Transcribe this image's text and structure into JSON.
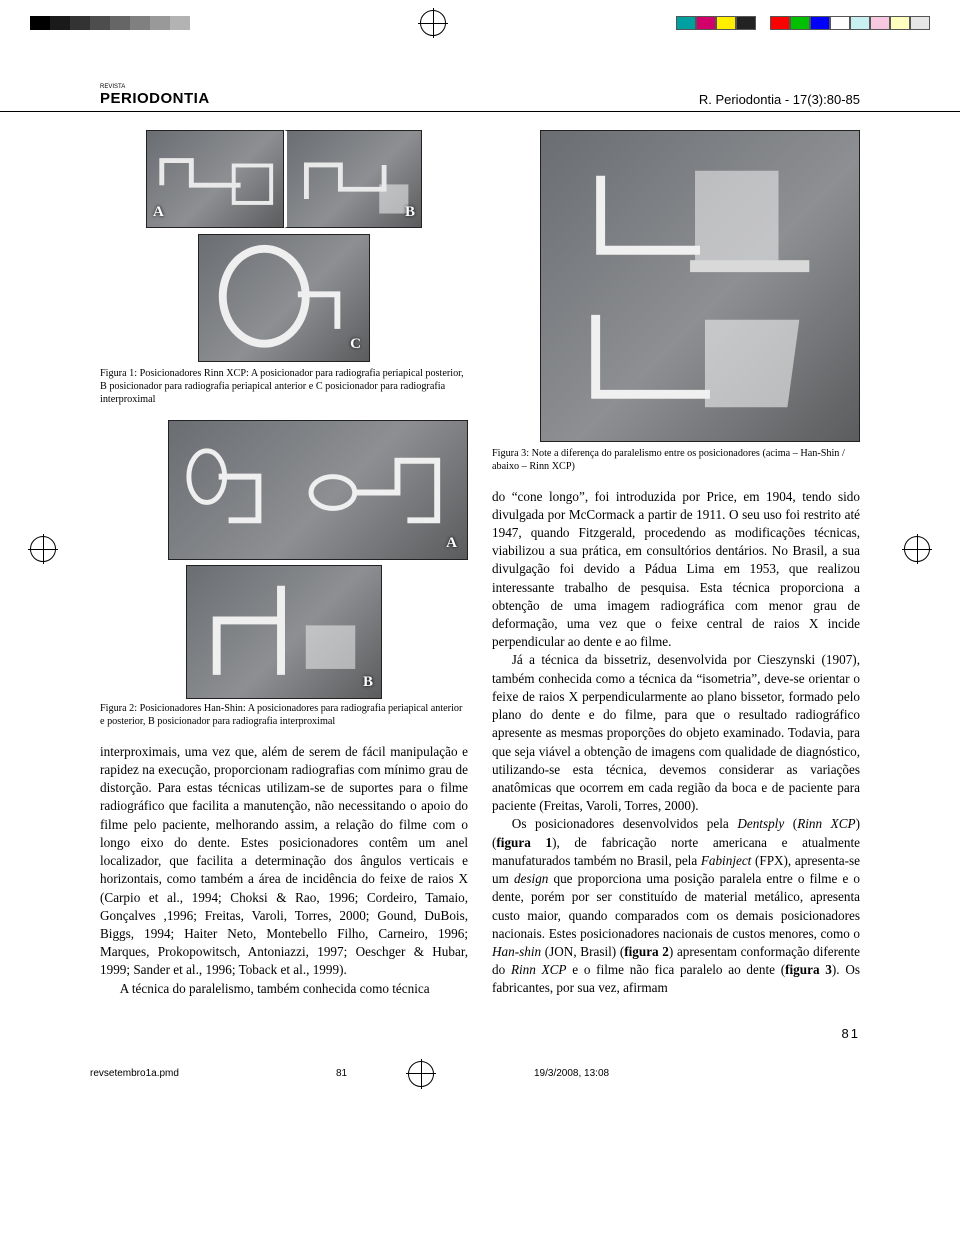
{
  "proof_bar": {
    "greyscale": [
      "#000000",
      "#1a1a1a",
      "#333333",
      "#4d4d4d",
      "#666666",
      "#808080",
      "#999999",
      "#b3b3b3"
    ],
    "colors_left": [
      "#00a0a0",
      "#d2006b",
      "#ffee00",
      "#222222"
    ],
    "colors_right": [
      "#ff0000",
      "#00c000",
      "#0000ff",
      "#ffffff",
      "#c8f0f0",
      "#f8c8e0",
      "#ffffc0",
      "#e6e6e6"
    ]
  },
  "header": {
    "journal_small": "REVISTA",
    "journal_name": "PERIODONTIA",
    "reference": "R. Periodontia - 17(3):80-85"
  },
  "figures": {
    "fig1": {
      "label_a": "A",
      "label_b": "B",
      "label_c": "C",
      "caption": "Figura 1: Posicionadores Rinn XCP: A posicionador para radiografia periapical posterior, B posicionador para radiografia periapical anterior e C posicionador para radiografia interproximal"
    },
    "fig2": {
      "label_a": "A",
      "label_b": "B",
      "caption": "Figura 2: Posicionadores Han-Shin: A posicionadores para radiografia periapical anterior e posterior, B posicionador para radiografia interproximal"
    },
    "fig3": {
      "caption": "Figura 3: Note a diferença do paralelismo entre os posicionadores (acima – Han-Shin / abaixo – Rinn XCP)"
    }
  },
  "body": {
    "col1_after_fig2": "interproximais, uma vez que, além de serem de fácil manipulação e rapidez na execução, proporcionam radiografias com mínimo grau de distorção. Para estas técnicas utilizam-se de suportes para o filme radiográfico que facilita a manutenção, não necessitando o apoio do filme pelo paciente, melhorando assim, a relação do filme com o longo eixo do dente. Estes posicionadores contêm um anel localizador, que facilita a determinação dos ângulos verticais e horizontais, como também a área de incidência do feixe de raios X (Carpio et al., 1994; Choksi & Rao, 1996; Cordeiro, Tamaio, Gonçalves ,1996; Freitas, Varoli, Torres, 2000; Gound, DuBois, Biggs, 1994; Haiter Neto, Montebello Filho, Carneiro, 1996; Marques, Prokopowitsch, Antoniazzi, 1997; Oeschger & Hubar, 1999; Sander et al., 1996; Toback et al., 1999).",
    "col1_last": "A técnica do paralelismo, também conhecida como técnica",
    "col2_p1": "do “cone longo”, foi introduzida por Price, em 1904, tendo sido divulgada por McCormack a partir de 1911. O seu uso foi restrito até 1947, quando Fitzgerald, procedendo as modificações técnicas, viabilizou a sua prática, em consultórios dentários. No Brasil, a sua divulgação foi devido a Pádua Lima em 1953, que realizou interessante trabalho de pesquisa. Esta técnica proporciona a obtenção de uma imagem radiográfica com menor grau de deformação, uma vez que o feixe central de raios X incide perpendicular ao dente e ao filme.",
    "col2_p2": "Já a técnica da bissetriz, desenvolvida por Cieszynski (1907), também conhecida como a técnica da “isometria”, deve-se orientar o feixe de raios X perpendicularmente ao plano bissetor, formado pelo plano do dente e do filme, para que o resultado radiográfico apresente as mesmas proporções do objeto examinado. Todavia, para que seja viável a obtenção de imagens com qualidade de diagnóstico, utilizando-se esta técnica, devemos considerar as variações anatômicas que ocorrem em cada região da boca e de paciente para paciente (Freitas, Varoli, Torres, 2000).",
    "col2_p3_a": "Os posicionadores desenvolvidos pela ",
    "col2_p3_b": "Dentsply",
    "col2_p3_c": " (",
    "col2_p3_d": "Rinn XCP",
    "col2_p3_e": ") (",
    "col2_p3_f": "figura 1",
    "col2_p3_g": "), de fabricação norte americana e atualmente manufaturados também no Brasil, pela ",
    "col2_p3_h": "Fabinject",
    "col2_p3_i": " (FPX), apresenta-se um ",
    "col2_p3_j": "design",
    "col2_p3_k": " que proporciona uma posição paralela entre o filme e o dente, porém por ser constituído de material metálico, apresenta custo maior, quando comparados com os demais posicionadores nacionais. Estes posicionadores nacionais de custos menores, como o ",
    "col2_p3_l": "Han-shin",
    "col2_p3_m": " (JON, Brasil) (",
    "col2_p3_n": "figura 2",
    "col2_p3_o": ") apresentam conformação diferente do ",
    "col2_p3_p": "Rinn XCP",
    "col2_p3_q": " e o filme não fica paralelo ao dente (",
    "col2_p3_r": "figura 3",
    "col2_p3_s": "). Os fabricantes, por sua vez, afirmam"
  },
  "page_number": "81",
  "footer": {
    "filename": "revsetembro1a.pmd",
    "page": "81",
    "timestamp": "19/3/2008, 13:08"
  }
}
